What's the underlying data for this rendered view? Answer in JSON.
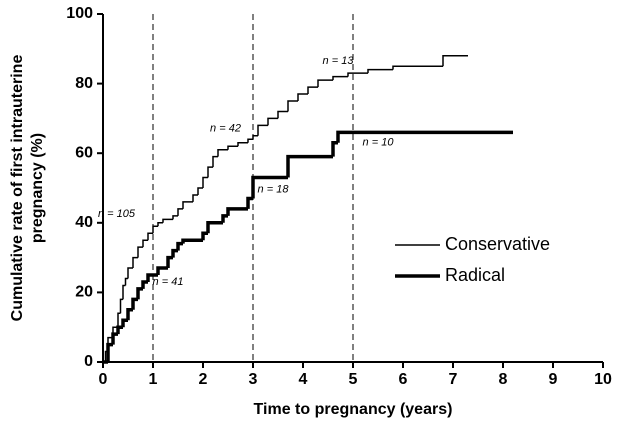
{
  "chart_data": {
    "type": "step",
    "xlabel": "Time to pregnancy (years)",
    "ylabel": [
      "Cumulative rate of first intrauterine",
      "pregnancy (%)"
    ],
    "xlim": [
      0,
      10
    ],
    "xticks": [
      0,
      1,
      2,
      3,
      4,
      5,
      6,
      7,
      8,
      9,
      10
    ],
    "ylim": [
      0,
      100
    ],
    "yticks": [
      0,
      20,
      40,
      60,
      80,
      100
    ],
    "vlines": [
      1,
      3,
      5
    ],
    "legend": "center-right",
    "series": [
      {
        "name": "Conservative",
        "color": "#000000",
        "width": 1.5,
        "x": [
          0,
          0.05,
          0.1,
          0.2,
          0.3,
          0.35,
          0.4,
          0.45,
          0.5,
          0.6,
          0.7,
          0.8,
          0.9,
          1.0,
          1.1,
          1.2,
          1.4,
          1.5,
          1.6,
          1.8,
          1.9,
          2.0,
          2.1,
          2.2,
          2.3,
          2.5,
          2.7,
          2.9,
          3.0,
          3.1,
          3.3,
          3.5,
          3.7,
          3.9,
          4.1,
          4.3,
          4.6,
          4.9,
          5.3,
          5.8,
          6.8,
          7.3
        ],
        "values": [
          0,
          3,
          7,
          10,
          14,
          18,
          22,
          24,
          27,
          30,
          33,
          35,
          37,
          39,
          40,
          41,
          42,
          44,
          46,
          48,
          50,
          53,
          56,
          59,
          61,
          62,
          63,
          64,
          65,
          68,
          70,
          72,
          75,
          77,
          79,
          81,
          82,
          83,
          84,
          85,
          88,
          88
        ]
      },
      {
        "name": "Radical",
        "color": "#000000",
        "width": 3.5,
        "x": [
          0,
          0.1,
          0.2,
          0.3,
          0.4,
          0.5,
          0.6,
          0.7,
          0.8,
          0.9,
          1.1,
          1.3,
          1.4,
          1.5,
          1.6,
          2.0,
          2.1,
          2.4,
          2.5,
          2.9,
          3.0,
          3.7,
          4.6,
          4.7,
          8.2
        ],
        "values": [
          0,
          5,
          8,
          10,
          12,
          15,
          18,
          21,
          23,
          25,
          27,
          30,
          32,
          34,
          35,
          37,
          40,
          42,
          44,
          47,
          53,
          59,
          63,
          66,
          66
        ]
      }
    ],
    "annotations": [
      {
        "text": "n = 105",
        "x": 0.27,
        "y": 42.5
      },
      {
        "text": "n = 42",
        "x": 2.45,
        "y": 67
      },
      {
        "text": "n = 13",
        "x": 4.7,
        "y": 86.5
      },
      {
        "text": "n = 41",
        "x": 1.3,
        "y": 23
      },
      {
        "text": "n = 18",
        "x": 3.4,
        "y": 49.5
      },
      {
        "text": "n = 10",
        "x": 5.5,
        "y": 63
      }
    ]
  }
}
